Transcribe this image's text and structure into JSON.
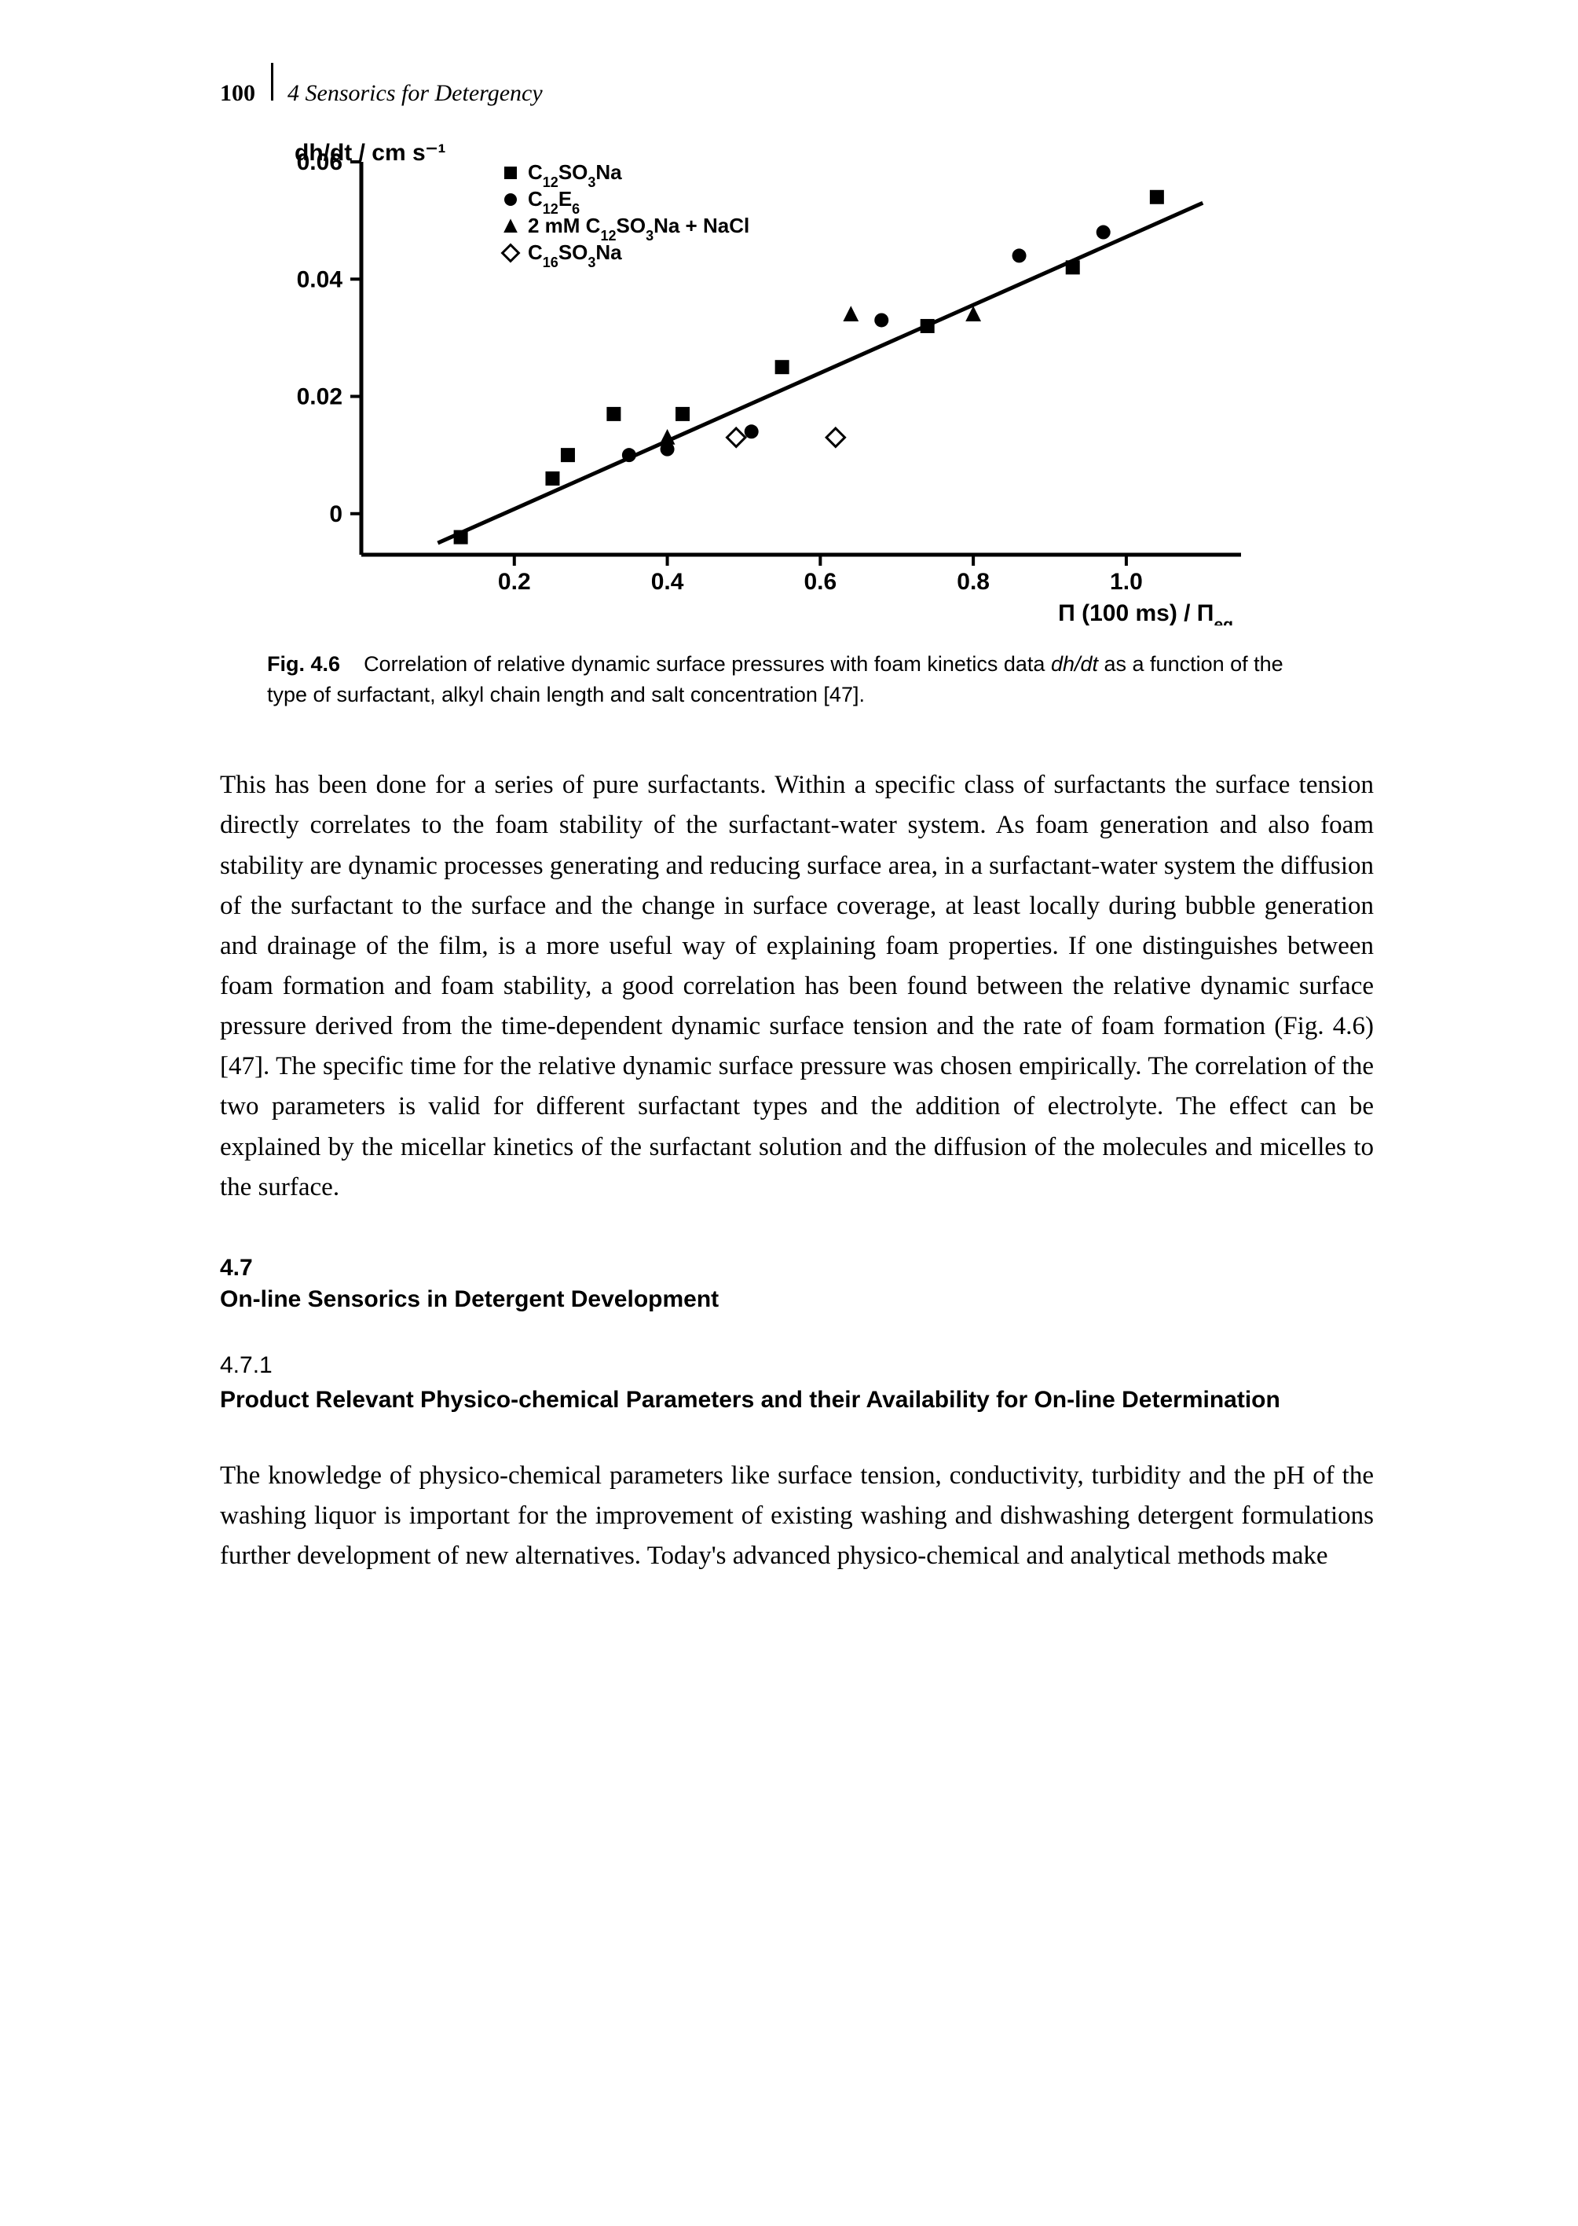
{
  "header": {
    "page_number": "100",
    "chapter_title": "4 Sensorics for Detergency"
  },
  "chart": {
    "type": "scatter_with_regression",
    "y_axis_label": "dh/dt / cm s⁻¹",
    "x_axis_label_prefix": "Π (100 ms) / Π",
    "x_axis_label_sub": "eq",
    "xlim": [
      0,
      1.15
    ],
    "ylim": [
      -0.007,
      0.06
    ],
    "x_ticks": [
      0.2,
      0.4,
      0.6,
      0.8,
      1.0
    ],
    "y_ticks": [
      0,
      0.02,
      0.04,
      0.06
    ],
    "x_tick_labels": [
      "0.2",
      "0.4",
      "0.6",
      "0.8",
      "1.0"
    ],
    "y_tick_labels": [
      "0",
      "0.02",
      "0.04",
      "0.06"
    ],
    "regression_line": {
      "x1": 0.1,
      "y1": -0.005,
      "x2": 1.1,
      "y2": 0.053
    },
    "axis_color": "#000000",
    "line_color": "#000000",
    "line_width": 5,
    "tick_font_size": 30,
    "label_font_size": 30,
    "legend_font_size": 26,
    "background": "#ffffff",
    "legend": [
      {
        "marker": "square_filled",
        "label_html": "C<sub>12</sub>SO<sub>3</sub>Na"
      },
      {
        "marker": "circle_filled",
        "label_html": "C<sub>12</sub>E<sub>6</sub>"
      },
      {
        "marker": "triangle_filled",
        "label_html": "2 mM C<sub>12</sub>SO<sub>3</sub>Na + NaCl"
      },
      {
        "marker": "diamond_open",
        "label_html": "C<sub>16</sub>SO<sub>3</sub>Na"
      }
    ],
    "series": [
      {
        "marker": "square_filled",
        "color": "#000000",
        "points": [
          [
            0.13,
            -0.004
          ],
          [
            0.25,
            0.006
          ],
          [
            0.27,
            0.01
          ],
          [
            0.33,
            0.017
          ],
          [
            0.42,
            0.017
          ],
          [
            0.55,
            0.025
          ],
          [
            0.74,
            0.032
          ],
          [
            0.93,
            0.042
          ],
          [
            1.04,
            0.054
          ]
        ]
      },
      {
        "marker": "circle_filled",
        "color": "#000000",
        "points": [
          [
            0.35,
            0.01
          ],
          [
            0.4,
            0.011
          ],
          [
            0.51,
            0.014
          ],
          [
            0.68,
            0.033
          ],
          [
            0.86,
            0.044
          ],
          [
            0.97,
            0.048
          ]
        ]
      },
      {
        "marker": "triangle_filled",
        "color": "#000000",
        "points": [
          [
            0.4,
            0.013
          ],
          [
            0.64,
            0.034
          ],
          [
            0.8,
            0.034
          ]
        ]
      },
      {
        "marker": "diamond_open",
        "color": "#000000",
        "points": [
          [
            0.49,
            0.013
          ],
          [
            0.62,
            0.013
          ]
        ]
      }
    ]
  },
  "caption": {
    "fig_label": "Fig. 4.6",
    "text_part1": "Correlation of relative dynamic surface pressures with foam kinetics data ",
    "italic": "dh/dt",
    "text_part2": " as a function of the type of surfactant, alkyl chain length and salt concentration [47]."
  },
  "paragraph1": "This has been done for a series of pure surfactants. Within a specific class of surfactants the surface tension directly correlates to the foam stability of the surfactant-water system. As foam generation and also foam stability are dynamic processes generating and reducing surface area, in a surfactant-water system the diffusion of the surfactant to the surface and the change in surface coverage, at least locally during bubble generation and drainage of the film, is a more useful way of explaining foam properties. If one distinguishes between foam formation and foam stability, a good correlation has been found between the relative dynamic surface pressure derived from the time-dependent dynamic surface tension and the rate of foam formation (Fig. 4.6) [47]. The specific time for the relative dynamic surface pressure was chosen empirically. The correlation of the two parameters is valid for different surfactant types and the addition of electrolyte. The effect can be explained by the micellar kinetics of the surfactant solution and the diffusion of the molecules and micelles to the surface.",
  "section": {
    "number": "4.7",
    "title": "On-line Sensorics in Detergent Development"
  },
  "subsection": {
    "number": "4.7.1",
    "title": "Product Relevant Physico-chemical Parameters and their Availability for On-line Determination"
  },
  "paragraph2": "The knowledge of physico-chemical parameters like surface tension, conductivity, turbidity and the pH of the washing liquor is important for the improvement of existing washing and dishwashing detergent formulations further development of new alternatives. Today's advanced physico-chemical and analytical methods make"
}
